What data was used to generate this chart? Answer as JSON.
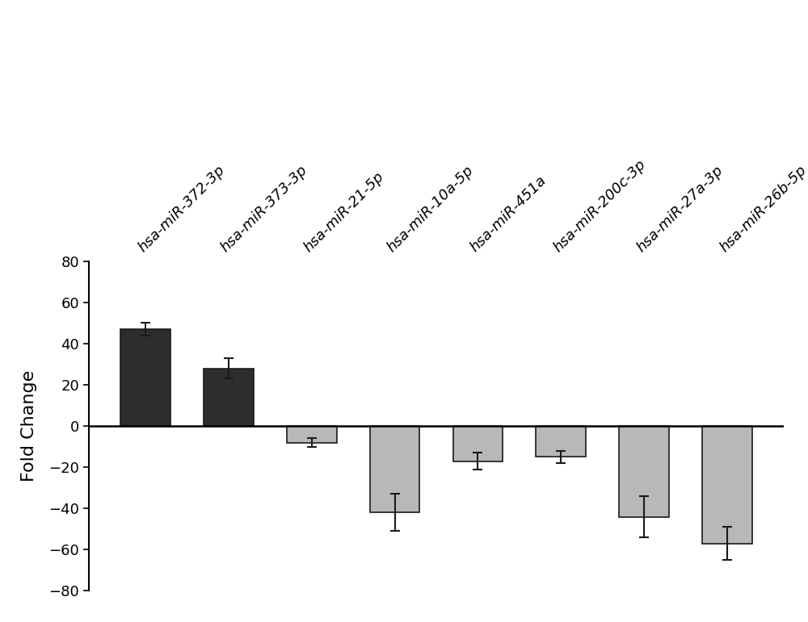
{
  "categories": [
    "hsa-miR-372-3p",
    "hsa-miR-373-3p",
    "hsa-miR-21-5p",
    "hsa-miR-10a-5p",
    "hsa-miR-451a",
    "hsa-miR-200c-3p",
    "hsa-miR-27a-3p",
    "hsa-miR-26b-5p"
  ],
  "values": [
    47,
    28,
    -8,
    -42,
    -17,
    -15,
    -44,
    -57
  ],
  "errors": [
    3,
    5,
    2,
    9,
    4,
    3,
    10,
    8
  ],
  "bar_colors": [
    "#2d2d2d",
    "#2d2d2d",
    "#b8b8b8",
    "#b8b8b8",
    "#b8b8b8",
    "#b8b8b8",
    "#b8b8b8",
    "#b8b8b8"
  ],
  "ylabel": "Fold Change",
  "ylim": [
    -80,
    80
  ],
  "yticks": [
    -80,
    -60,
    -40,
    -20,
    0,
    20,
    40,
    60,
    80
  ],
  "bar_edge_color": "#1a1a1a",
  "error_color": "#1a1a1a",
  "background_color": "#ffffff",
  "ylabel_fontsize": 16,
  "tick_fontsize": 13,
  "label_fontsize": 13
}
